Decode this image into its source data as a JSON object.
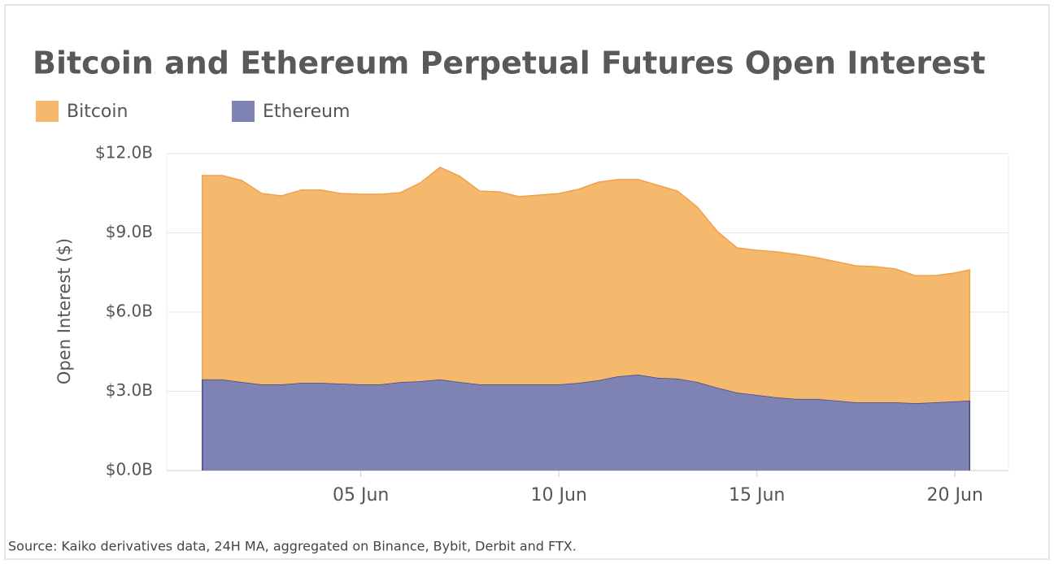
{
  "chart_data": {
    "type": "area",
    "stacked": true,
    "title": "Bitcoin and Ethereum Perpetual Futures Open Interest",
    "y_label": "Open Interest ($)",
    "source": "Source: Kaiko derivatives data, 24H MA, aggregated on Binance, Bybit, Derbit and FTX.",
    "x": [
      1,
      1.5,
      2,
      2.5,
      3,
      3.5,
      4,
      4.5,
      5,
      5.5,
      6,
      6.5,
      7,
      7.5,
      8,
      8.5,
      9,
      9.5,
      10,
      10.5,
      11,
      11.5,
      12,
      12.5,
      13,
      13.5,
      14,
      14.5,
      15,
      15.5,
      16,
      16.5,
      17,
      17.5,
      18,
      18.5,
      19,
      19.5,
      20,
      20.37
    ],
    "series": [
      {
        "name": "Bitcoin",
        "color": "#f5b96e",
        "line_color": "#f0a04b",
        "values": [
          7.72,
          7.72,
          7.63,
          7.23,
          7.14,
          7.3,
          7.3,
          7.2,
          7.2,
          7.2,
          7.17,
          7.51,
          8.03,
          7.79,
          7.32,
          7.29,
          7.11,
          7.17,
          7.23,
          7.33,
          7.5,
          7.45,
          7.39,
          7.29,
          7.1,
          6.62,
          5.91,
          5.48,
          5.48,
          5.51,
          5.47,
          5.35,
          5.26,
          5.17,
          5.14,
          5.05,
          4.83,
          4.8,
          4.86,
          4.95
        ]
      },
      {
        "name": "Ethereum",
        "color": "#7f83b4",
        "line_color": "#3d4a8a",
        "values": [
          3.45,
          3.45,
          3.35,
          3.26,
          3.26,
          3.32,
          3.32,
          3.29,
          3.26,
          3.26,
          3.35,
          3.38,
          3.45,
          3.35,
          3.26,
          3.26,
          3.26,
          3.26,
          3.26,
          3.32,
          3.42,
          3.57,
          3.63,
          3.51,
          3.48,
          3.35,
          3.14,
          2.95,
          2.86,
          2.77,
          2.71,
          2.71,
          2.65,
          2.58,
          2.58,
          2.58,
          2.55,
          2.58,
          2.62,
          2.65
        ]
      }
    ],
    "xlim": [
      0.1,
      21.35
    ],
    "xticks": [
      {
        "value": 5,
        "label": "05 Jun"
      },
      {
        "value": 10,
        "label": "10 Jun"
      },
      {
        "value": 15,
        "label": "15 Jun"
      },
      {
        "value": 20,
        "label": "20 Jun"
      }
    ],
    "ylim": [
      0,
      12
    ],
    "yticks": [
      {
        "value": 0,
        "label": "$0.0B"
      },
      {
        "value": 3,
        "label": "$3.0B"
      },
      {
        "value": 6,
        "label": "$6.0B"
      },
      {
        "value": 9,
        "label": "$9.0B"
      },
      {
        "value": 12,
        "label": "$12.0B"
      }
    ],
    "grid": true,
    "legend": "top-left"
  }
}
